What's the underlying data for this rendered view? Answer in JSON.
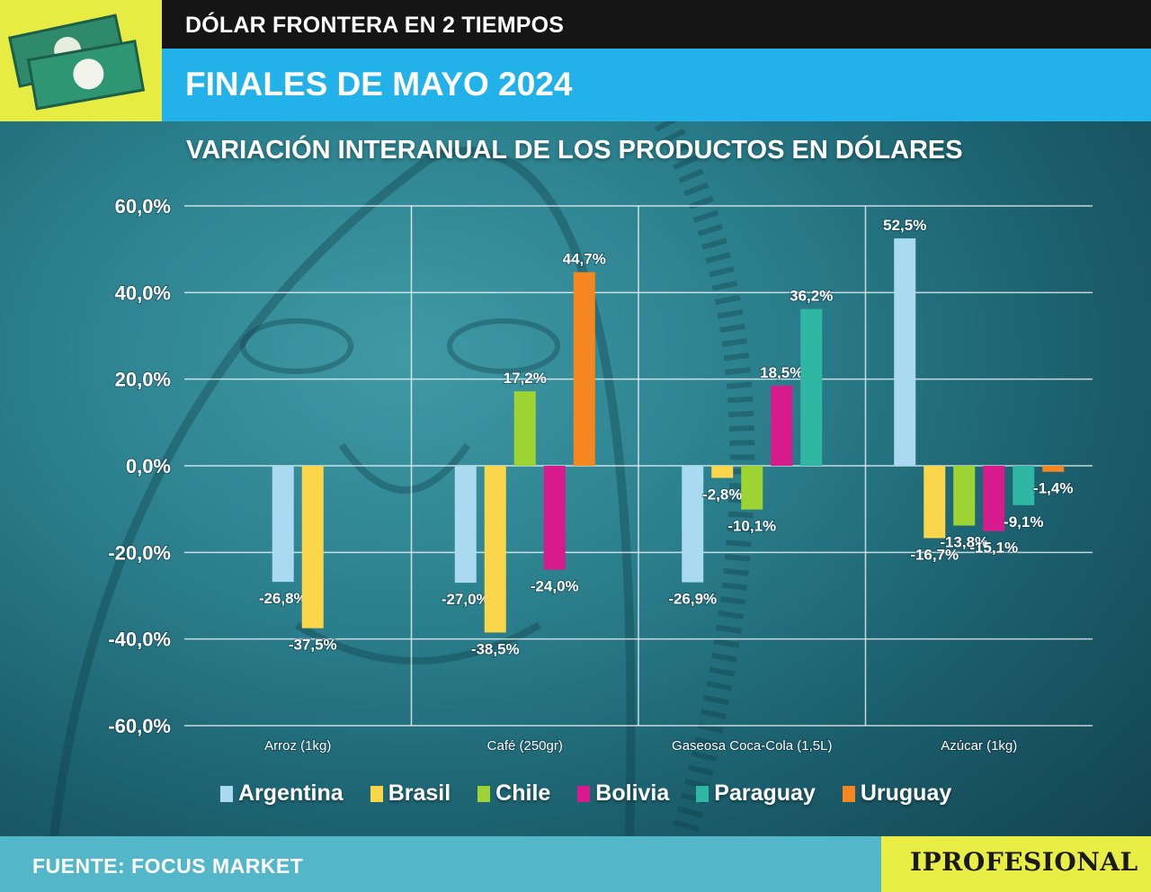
{
  "header": {
    "top_title": "DÓLAR FRONTERA EN 2 TIEMPOS",
    "main_title": "FINALES DE MAYO 2024"
  },
  "chart_data": {
    "type": "bar",
    "title": "VARIACIÓN INTERANUAL DE LOS PRODUCTOS EN DÓLARES",
    "categories": [
      "Arroz (1kg)",
      "Café (250gr)",
      "Gaseosa Coca-Cola (1,5L)",
      "Azúcar (1kg)"
    ],
    "ylim": [
      -60,
      60
    ],
    "yticks": [
      60,
      40,
      20,
      0,
      -20,
      -40,
      -60
    ],
    "ytick_labels": [
      "60,0%",
      "40,0%",
      "20,0%",
      "0,0%",
      "-20,0%",
      "-40,0%",
      "-60,0%"
    ],
    "grid": true,
    "legend_position": "bottom",
    "series": [
      {
        "name": "Argentina",
        "color": "#a9daf2",
        "values": [
          -26.8,
          -27.0,
          -26.9,
          52.5
        ],
        "labels": [
          "-26,8%",
          "-27,0%",
          "-26,9%",
          "52,5%"
        ]
      },
      {
        "name": "Brasil",
        "color": "#fbd54a",
        "values": [
          -37.5,
          -38.5,
          -2.8,
          -16.7
        ],
        "labels": [
          "-37,5%",
          "-38,5%",
          "-2,8%",
          "-16,7%"
        ]
      },
      {
        "name": "Chile",
        "color": "#9dd434",
        "values": [
          null,
          17.2,
          -10.1,
          -13.8
        ],
        "labels": [
          "",
          "17,2%",
          "-10,1%",
          "-13,8%"
        ]
      },
      {
        "name": "Bolivia",
        "color": "#d81b8c",
        "values": [
          null,
          -24.0,
          18.5,
          -15.1
        ],
        "labels": [
          "",
          "-24,0%",
          "18,5%",
          "-15,1%"
        ]
      },
      {
        "name": "Paraguay",
        "color": "#2fb7a3",
        "values": [
          null,
          null,
          36.2,
          -9.1
        ],
        "labels": [
          "",
          "",
          "36,2%",
          "-9,1%"
        ]
      },
      {
        "name": "Uruguay",
        "color": "#f6861f",
        "values": [
          null,
          44.7,
          null,
          -1.4
        ],
        "labels": [
          "",
          "44,7%",
          "",
          "-1,4%"
        ]
      }
    ]
  },
  "footer": {
    "source": "FUENTE: FOCUS MARKET",
    "brand": "IPROFESIONAL"
  },
  "icons": {
    "topleft": "money-bills-icon"
  }
}
